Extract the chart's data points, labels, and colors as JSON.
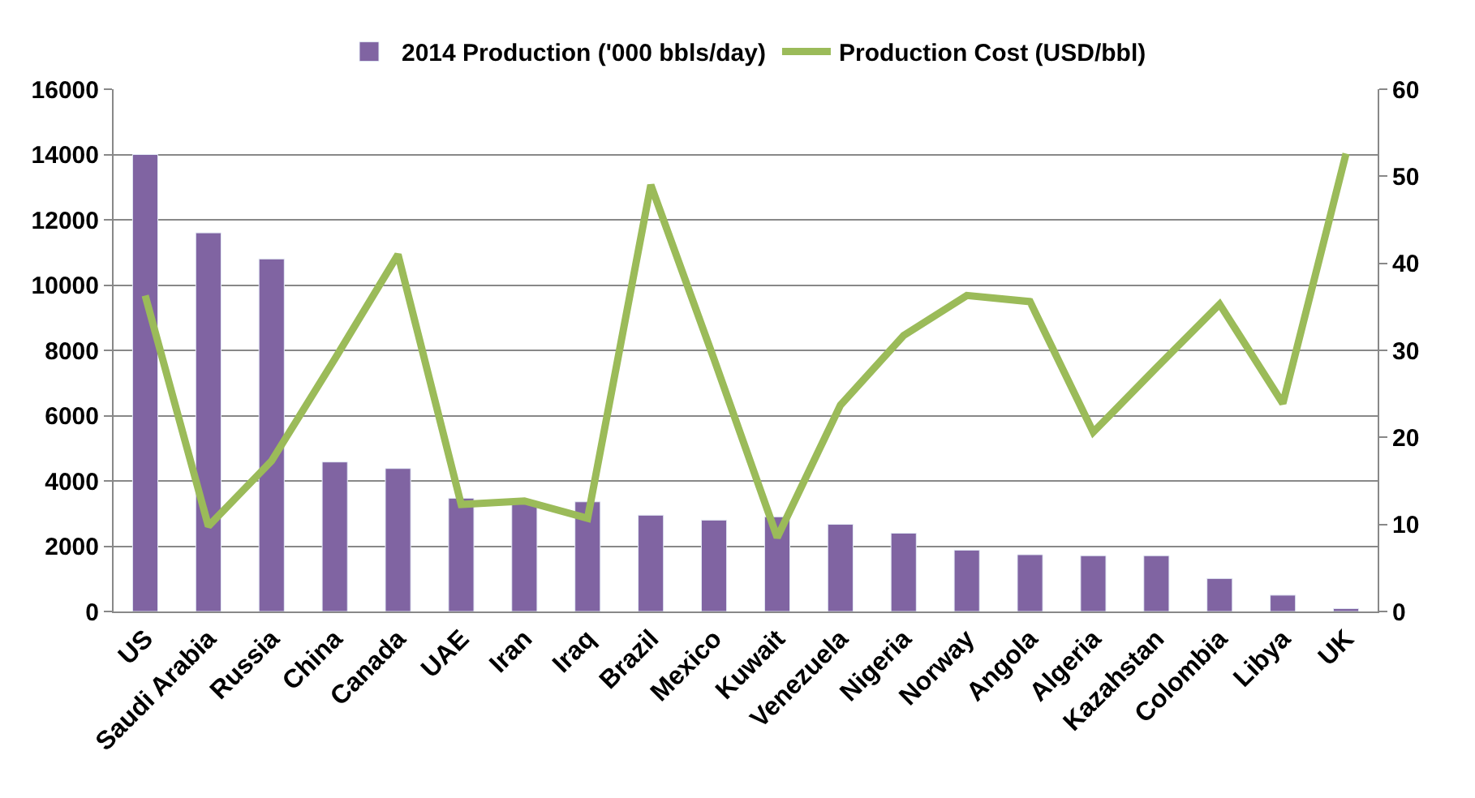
{
  "chart_data": {
    "type": "bar",
    "categories": [
      "US",
      "Saudi Arabia",
      "Russia",
      "China",
      "Canada",
      "UAE",
      "Iran",
      "Iraq",
      "Brazil",
      "Mexico",
      "Kuwait",
      "Venezuela",
      "Nigeria",
      "Norway",
      "Angola",
      "Algeria",
      "Kazahstan",
      "Colombia",
      "Libya",
      "UK"
    ],
    "series": [
      {
        "name": "2014 Production ('000 bbls/day)",
        "color": "#8064a2",
        "values": [
          14000,
          11600,
          10800,
          4580,
          4380,
          3470,
          3310,
          3360,
          2950,
          2800,
          2900,
          2670,
          2400,
          1880,
          1740,
          1710,
          1710,
          1010,
          500,
          90
        ]
      },
      {
        "name": "Production Cost (USD/bbl)",
        "type": "line",
        "axis": "y2",
        "color": "#9bbb59",
        "values": [
          36.3,
          9.8,
          17.3,
          29,
          41,
          12.3,
          12.7,
          10.7,
          49,
          29,
          8.5,
          23.7,
          31.7,
          36.3,
          35.6,
          20.6,
          28,
          35.3,
          23.9,
          52.6
        ]
      }
    ],
    "ylim": [
      0,
      16000
    ],
    "yticks": [
      0,
      2000,
      4000,
      6000,
      8000,
      10000,
      12000,
      14000,
      16000
    ],
    "y2lim": [
      0,
      60
    ],
    "y2ticks": [
      0,
      10,
      20,
      30,
      40,
      50,
      60
    ],
    "grid": "y",
    "legend": "top",
    "marker": "none"
  }
}
